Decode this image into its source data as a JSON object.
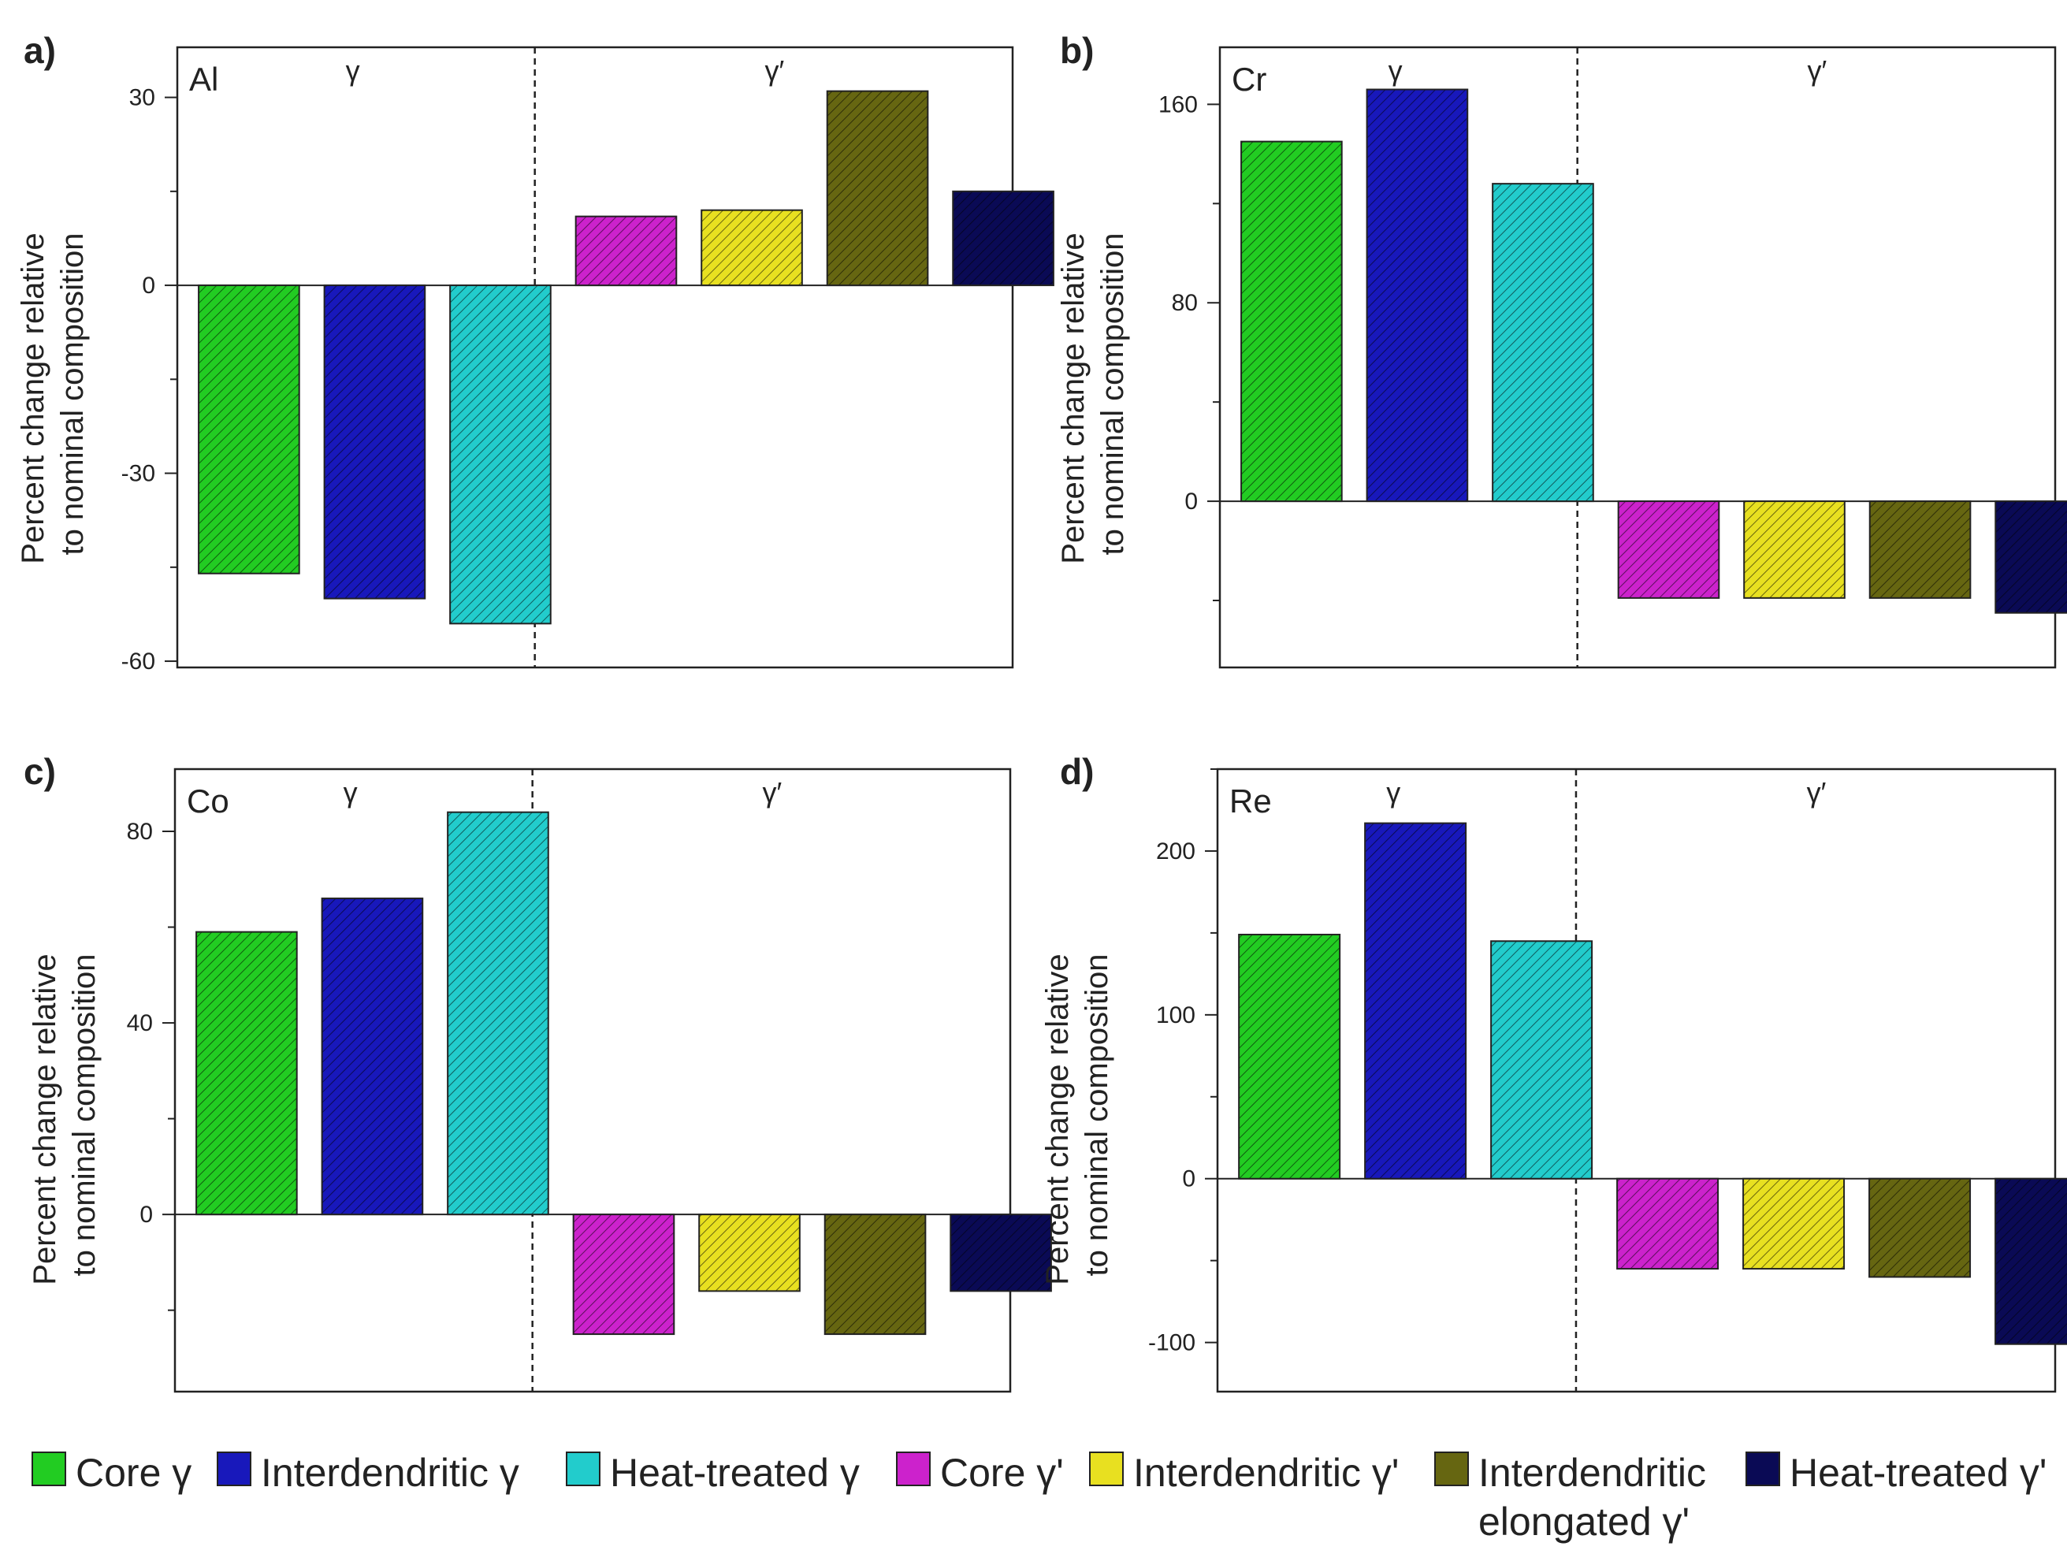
{
  "legend": [
    {
      "label": "Core γ",
      "color": "#22cc22"
    },
    {
      "label": "Interdendritic γ",
      "color": "#1818bb"
    },
    {
      "label": "Heat-treated γ",
      "color": "#22cccc"
    },
    {
      "label": "Core γ'",
      "color": "#cc22cc"
    },
    {
      "label": "Interdendritic γ'",
      "color": "#e8e020"
    },
    {
      "label": "Interdendritic\nelongated γ'",
      "color": "#666611"
    },
    {
      "label": "Heat-treated γ'",
      "color": "#0a0a55"
    }
  ],
  "chart_data": [
    {
      "type": "bar",
      "panel": "a)",
      "element": "Al",
      "phase_labels": [
        "γ",
        "γ′"
      ],
      "ylabel": [
        "Percent change relative",
        "to nominal composition"
      ],
      "ylim": [
        -61,
        38
      ],
      "yticks": [
        30,
        0,
        -30,
        -60
      ],
      "minor_ticks": true,
      "categories": [
        "Core γ",
        "Interdendritic γ",
        "Heat-treated γ",
        "Core γ'",
        "Interdendritic γ'",
        "Interdendritic elongated γ'",
        "Heat-treated γ'"
      ],
      "values": [
        -46,
        -50,
        -54,
        11,
        12,
        31,
        15
      ]
    },
    {
      "type": "bar",
      "panel": "b)",
      "element": "Cr",
      "phase_labels": [
        "γ",
        "γ′"
      ],
      "ylabel": [
        "Percent change relative",
        "to nominal composition"
      ],
      "ylim": [
        -67,
        183
      ],
      "yticks": [
        160,
        80,
        0
      ],
      "minor_ticks": true,
      "categories": [
        "Core γ",
        "Interdendritic γ",
        "Heat-treated γ",
        "Core γ'",
        "Interdendritic γ'",
        "Interdendritic elongated γ'",
        "Heat-treated γ'"
      ],
      "values": [
        145,
        166,
        128,
        -39,
        -39,
        -39,
        -45
      ]
    },
    {
      "type": "bar",
      "panel": "c)",
      "element": "Co",
      "phase_labels": [
        "γ",
        "γ′"
      ],
      "ylabel": [
        "Percent change relative",
        "to nominal composition"
      ],
      "ylim": [
        -37,
        93
      ],
      "yticks": [
        80,
        40,
        0
      ],
      "minor_ticks": true,
      "categories": [
        "Core γ",
        "Interdendritic γ",
        "Heat-treated γ",
        "Core γ'",
        "Interdendritic γ'",
        "Interdendritic elongated γ'",
        "Heat-treated γ'"
      ],
      "values": [
        59,
        66,
        84,
        -25,
        -16,
        -25,
        -16
      ]
    },
    {
      "type": "bar",
      "panel": "d)",
      "element": "Re",
      "phase_labels": [
        "γ",
        "γ′"
      ],
      "ylabel": [
        "Percent change relative",
        "to nominal composition"
      ],
      "ylim": [
        -130,
        250
      ],
      "yticks": [
        200,
        100,
        0,
        -100
      ],
      "minor_ticks": true,
      "categories": [
        "Core γ",
        "Interdendritic γ",
        "Heat-treated γ",
        "Core γ'",
        "Interdendritic γ'",
        "Interdendritic elongated γ'",
        "Heat-treated γ'"
      ],
      "values": [
        149,
        217,
        145,
        -55,
        -55,
        -60,
        -101
      ]
    }
  ]
}
